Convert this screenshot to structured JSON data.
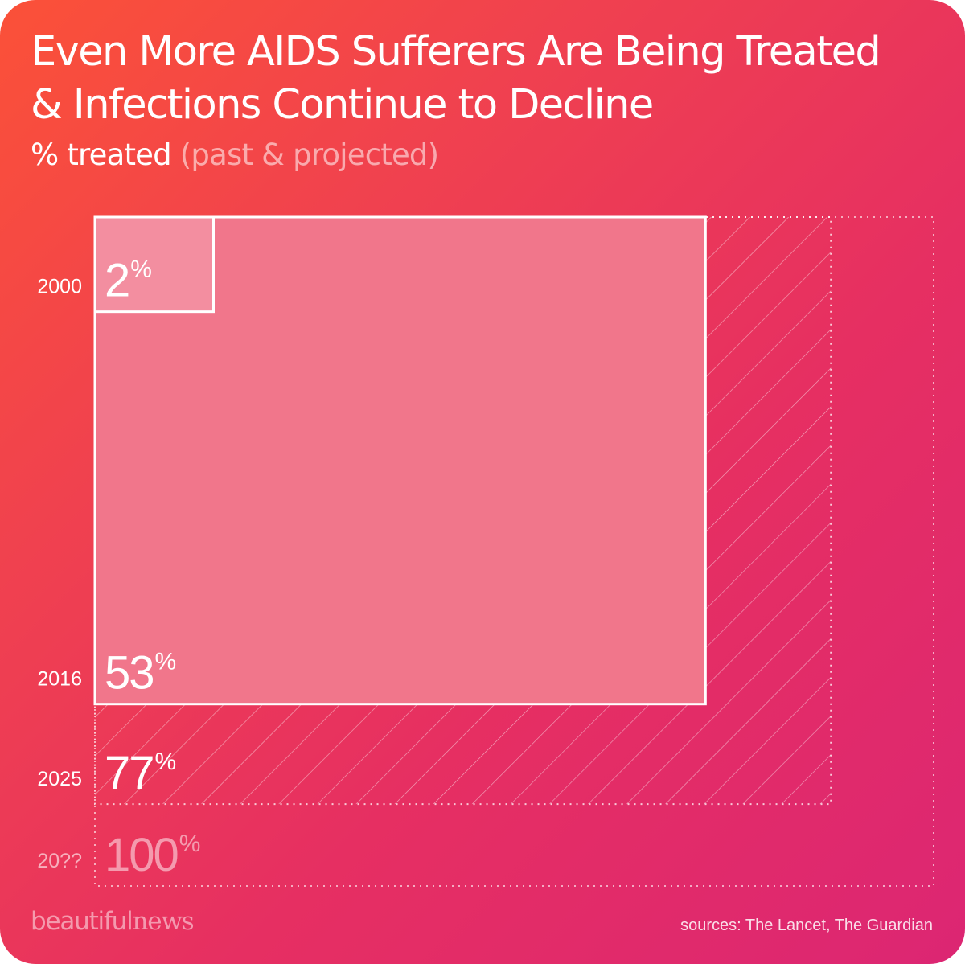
{
  "title_line1": "Even More AIDS Sufferers Are Being Treated",
  "title_line2": "& Infections Continue to Decline",
  "subtitle": {
    "main": "% treated",
    "muted": "(past & projected)"
  },
  "chart_data": {
    "type": "nested-area",
    "title": "Even More AIDS Sufferers Are Being Treated & Infections Continue to Decline",
    "ylabel": "% treated (past & projected)",
    "categories": [
      "2000",
      "2016",
      "2025",
      "20??"
    ],
    "values": [
      2,
      53,
      77,
      100
    ],
    "value_labels": [
      "2",
      "53",
      "77",
      "100"
    ],
    "unit": "%",
    "projected": [
      false,
      false,
      true,
      true
    ]
  },
  "brand": {
    "part1": "beautiful",
    "part2": "news"
  },
  "sources": "sources: The Lancet, The Guardian"
}
